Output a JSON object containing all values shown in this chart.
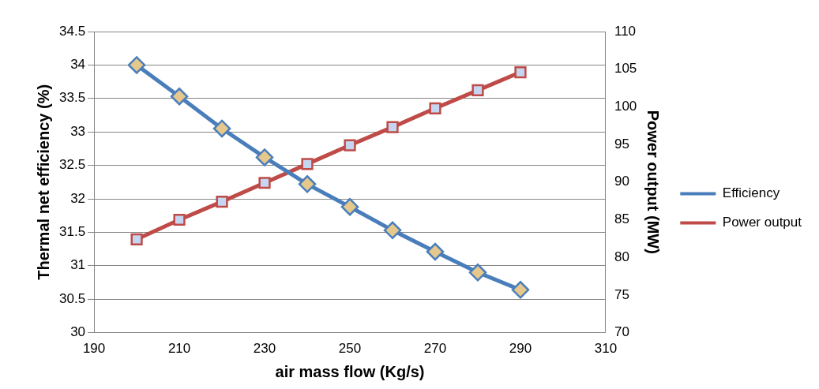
{
  "chart_data": {
    "type": "line",
    "xlabel": "air mass flow (Kg/s)",
    "ylabel": "Thermal net efficiency (%)",
    "y2label": "Power output (MW)",
    "x": [
      200,
      210,
      220,
      230,
      240,
      250,
      260,
      270,
      280,
      290
    ],
    "series": [
      {
        "name": "Efficiency",
        "color": "#4a7ebb",
        "marker": "diamond",
        "values": [
          34.0,
          33.53,
          33.05,
          32.62,
          32.22,
          31.88,
          31.53,
          31.21,
          30.9,
          30.64
        ]
      },
      {
        "name": "Power output",
        "color": "#be4b48",
        "marker": "square",
        "axis": "y2",
        "values": [
          82.4,
          85.0,
          87.4,
          89.9,
          92.4,
          94.9,
          97.3,
          99.8,
          102.2,
          104.6
        ]
      }
    ],
    "xlim": [
      190,
      310
    ],
    "xticks": [
      190,
      210,
      230,
      250,
      270,
      290,
      310
    ],
    "ylim": [
      30,
      34.5
    ],
    "yticks": [
      30,
      30.5,
      31,
      31.5,
      32,
      32.5,
      33,
      33.5,
      34,
      34.5
    ],
    "y2lim": [
      70,
      110
    ],
    "y2ticks": [
      70,
      75,
      80,
      85,
      90,
      95,
      100,
      105,
      110
    ],
    "grid": "y",
    "legend": "right",
    "line_style": "solid"
  }
}
